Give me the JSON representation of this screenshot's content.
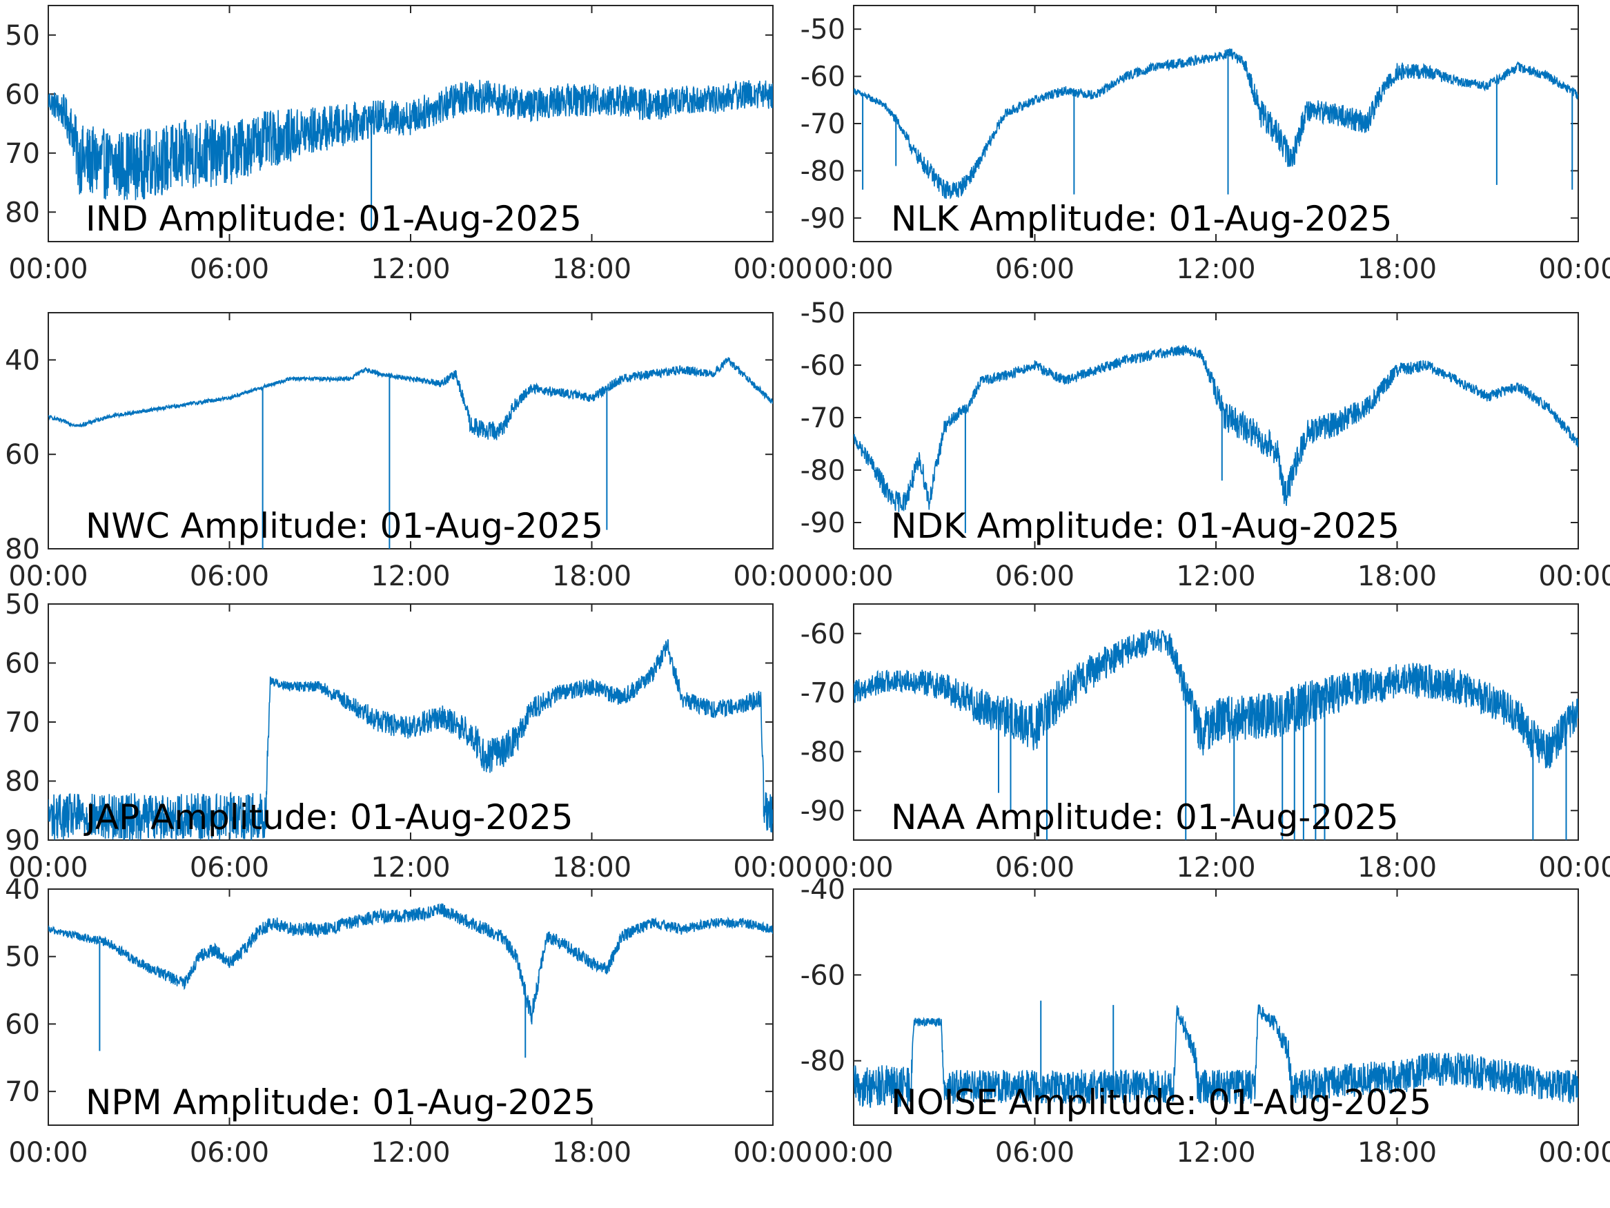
{
  "line_color": "#0072BD",
  "chart_data": [
    {
      "type": "line",
      "title": "IND Amplitude: 01-Aug-2025",
      "xlabel": "",
      "ylabel": "",
      "x_ticks": [
        "00:00",
        "06:00",
        "12:00",
        "18:00",
        "00:00"
      ],
      "y_ticks": [
        "50",
        "60",
        "70",
        "80"
      ],
      "ylim": [
        -85,
        -45
      ],
      "y_reversed_display": true,
      "series": [
        {
          "hours": [
            0,
            0.5,
            0.8,
            1,
            2,
            3,
            4,
            5,
            6,
            7,
            8,
            9,
            10,
            11,
            12,
            13,
            14,
            15,
            16,
            17,
            18,
            19,
            20,
            21,
            22,
            23,
            24
          ],
          "center": [
            -61,
            -63,
            -66,
            -71,
            -72,
            -72,
            -71,
            -70,
            -70,
            -68,
            -67,
            -66,
            -65,
            -64,
            -64,
            -62,
            -60,
            -61,
            -62,
            -61,
            -61,
            -61,
            -62,
            -61,
            -61,
            -60,
            -60
          ],
          "noise": [
            2,
            3,
            4,
            6,
            6,
            6,
            6,
            6,
            5.5,
            5,
            4.5,
            4,
            3.5,
            3,
            3,
            3,
            3,
            2.8,
            2.8,
            2.8,
            2.8,
            2.8,
            2.8,
            2.5,
            2.5,
            2.5,
            2.5
          ]
        }
      ],
      "spikes": [
        {
          "hour": 10.7,
          "value": -83
        }
      ]
    },
    {
      "type": "line",
      "title": "NLK Amplitude: 01-Aug-2025",
      "xlabel": "",
      "ylabel": "",
      "x_ticks": [
        "00:00",
        "06:00",
        "12:00",
        "18:00",
        "00:00"
      ],
      "y_ticks": [
        "-50",
        "-60",
        "-70",
        "-80",
        "-90"
      ],
      "ylim": [
        -95,
        -45
      ],
      "y_reversed_display": false,
      "series": [
        {
          "hours": [
            0,
            1,
            1.5,
            2,
            2.5,
            3,
            3.5,
            4,
            5,
            6,
            7,
            8,
            9,
            10,
            11,
            12,
            12.5,
            13,
            13.5,
            14,
            14.5,
            15,
            16,
            17,
            17.5,
            18,
            19,
            20,
            21,
            22,
            23,
            24
          ],
          "center": [
            -63,
            -66,
            -70,
            -76,
            -80,
            -84,
            -84,
            -80,
            -68,
            -65,
            -63,
            -64,
            -60,
            -58,
            -57,
            -56,
            -55,
            -58,
            -68,
            -72,
            -78,
            -67,
            -68,
            -70,
            -63,
            -59,
            -59,
            -61,
            -62,
            -58,
            -60,
            -64
          ],
          "noise": [
            0.6,
            0.8,
            1,
            1.5,
            2,
            2,
            2,
            1.5,
            1,
            1,
            1,
            1,
            1,
            1,
            1,
            1,
            1,
            1.5,
            3,
            3,
            3,
            2.5,
            2.5,
            2.5,
            2,
            2,
            1.5,
            1,
            1,
            1,
            1,
            1
          ]
        }
      ],
      "spikes": [
        {
          "hour": 0.3,
          "value": -84
        },
        {
          "hour": 1.4,
          "value": -79
        },
        {
          "hour": 7.3,
          "value": -85
        },
        {
          "hour": 12.4,
          "value": -85
        },
        {
          "hour": 21.3,
          "value": -83
        },
        {
          "hour": 23.8,
          "value": -84
        }
      ]
    },
    {
      "type": "line",
      "title": "NWC Amplitude: 01-Aug-2025",
      "xlabel": "",
      "ylabel": "",
      "x_ticks": [
        "00:00",
        "06:00",
        "12:00",
        "18:00",
        "00:00"
      ],
      "y_ticks": [
        "40",
        "60",
        "80"
      ],
      "ylim": [
        -80,
        -30
      ],
      "y_reversed_display": true,
      "series": [
        {
          "hours": [
            0,
            1,
            2,
            3,
            4,
            5,
            6,
            7,
            8,
            9,
            10,
            10.5,
            11,
            12,
            13,
            13.5,
            14,
            14.5,
            15,
            15.5,
            16,
            17,
            18,
            19,
            20,
            21,
            22,
            22.5,
            23,
            24
          ],
          "center": [
            -52,
            -54,
            -52,
            -51,
            -50,
            -49,
            -48,
            -46,
            -44,
            -44,
            -44,
            -42,
            -43,
            -44,
            -45,
            -43,
            -54,
            -55,
            -55,
            -49,
            -46,
            -47,
            -48,
            -44,
            -43,
            -42,
            -43,
            -40,
            -43,
            -49
          ],
          "noise": [
            0.4,
            0.4,
            0.4,
            0.4,
            0.4,
            0.4,
            0.4,
            0.4,
            0.4,
            0.4,
            0.5,
            0.5,
            0.5,
            0.5,
            0.8,
            1,
            2,
            2,
            2,
            1.5,
            1,
            1,
            1,
            1,
            1,
            1,
            0.8,
            0.8,
            0.8,
            0.6
          ]
        }
      ],
      "spikes": [
        {
          "hour": 7.1,
          "value": -80
        },
        {
          "hour": 11.3,
          "value": -80
        },
        {
          "hour": 18.5,
          "value": -76
        }
      ]
    },
    {
      "type": "line",
      "title": "NDK Amplitude: 01-Aug-2025",
      "xlabel": "",
      "ylabel": "",
      "x_ticks": [
        "00:00",
        "06:00",
        "12:00",
        "18:00",
        "00:00"
      ],
      "y_ticks": [
        "-50",
        "-60",
        "-70",
        "-80",
        "-90"
      ],
      "ylim": [
        -95,
        -50
      ],
      "y_reversed_display": false,
      "series": [
        {
          "hours": [
            0,
            0.5,
            1,
            1.3,
            1.7,
            2,
            2.2,
            2.5,
            3,
            3.5,
            3.8,
            4.2,
            5,
            6,
            7,
            8,
            9,
            10,
            11,
            11.5,
            12,
            12.3,
            13,
            14,
            14.3,
            15,
            16,
            17,
            18,
            19,
            20,
            21,
            22,
            23,
            24
          ],
          "center": [
            -74,
            -78,
            -83,
            -86,
            -86,
            -81,
            -78,
            -86,
            -72,
            -69,
            -68,
            -63,
            -62,
            -60,
            -63,
            -61,
            -59,
            -58,
            -57,
            -58,
            -65,
            -70,
            -72,
            -76,
            -85,
            -73,
            -71,
            -68,
            -61,
            -60,
            -63,
            -66,
            -64,
            -68,
            -75
          ],
          "noise": [
            1,
            1.5,
            2,
            2,
            2,
            2,
            2,
            2,
            1.5,
            1,
            1,
            1,
            1,
            1,
            1,
            1,
            1,
            1,
            1,
            1,
            2,
            3,
            3,
            3,
            3,
            2.5,
            2.5,
            2,
            1.5,
            1,
            1,
            1,
            1,
            1,
            1
          ]
        }
      ],
      "spikes": [
        {
          "hour": 3.7,
          "value": -92
        },
        {
          "hour": 12.2,
          "value": -82
        }
      ]
    },
    {
      "type": "line",
      "title": "JAP Amplitude: 01-Aug-2025",
      "xlabel": "",
      "ylabel": "",
      "x_ticks": [
        "00:00",
        "06:00",
        "12:00",
        "18:00",
        "00:00"
      ],
      "y_ticks": [
        "50",
        "60",
        "70",
        "80",
        "90"
      ],
      "ylim": [
        -90,
        -50
      ],
      "y_reversed_display": true,
      "series": [
        {
          "hours": [
            0,
            1,
            2,
            3,
            4,
            5,
            6,
            7.2,
            7.35,
            8,
            9,
            10,
            11,
            12,
            13,
            14,
            14.5,
            15,
            15.5,
            16,
            17,
            18,
            19,
            20,
            20.5,
            21,
            22,
            23,
            23.6,
            23.7,
            24
          ],
          "center": [
            -86,
            -86,
            -86,
            -86,
            -86,
            -86,
            -86,
            -86,
            -63,
            -64,
            -64,
            -67,
            -70,
            -71,
            -69,
            -72,
            -76,
            -75,
            -73,
            -68,
            -65,
            -64,
            -66,
            -62,
            -57,
            -66,
            -68,
            -67,
            -66,
            -85,
            -86
          ],
          "noise": [
            4,
            4,
            4,
            4,
            4,
            4,
            4,
            4,
            0.8,
            0.8,
            1,
            1.5,
            2,
            2,
            2,
            2.5,
            3,
            3,
            2.5,
            2,
            1.5,
            1.5,
            1.5,
            1.5,
            1.5,
            1.5,
            1.5,
            1.5,
            1.5,
            4,
            4
          ]
        }
      ],
      "spikes": []
    },
    {
      "type": "line",
      "title": "NAA Amplitude: 01-Aug-2025",
      "xlabel": "",
      "ylabel": "",
      "x_ticks": [
        "00:00",
        "06:00",
        "12:00",
        "18:00",
        "00:00"
      ],
      "y_ticks": [
        "-60",
        "-70",
        "-80",
        "-90"
      ],
      "ylim": [
        -95,
        -55
      ],
      "y_reversed_display": false,
      "series": [
        {
          "hours": [
            0,
            1,
            2,
            3,
            4,
            5,
            5.5,
            6,
            7,
            8,
            9,
            10,
            10.5,
            11,
            11.5,
            12,
            13,
            14,
            15,
            16,
            17,
            18,
            19,
            20,
            21,
            22,
            22.5,
            23,
            24
          ],
          "center": [
            -70,
            -68,
            -68,
            -69,
            -72,
            -74,
            -75,
            -76,
            -70,
            -66,
            -63,
            -61,
            -62,
            -70,
            -77,
            -75,
            -74,
            -74,
            -72,
            -70,
            -69,
            -68,
            -68,
            -69,
            -71,
            -74,
            -78,
            -80,
            -73
          ],
          "noise": [
            2,
            2,
            2,
            2.5,
            3,
            3.5,
            4,
            4,
            3.5,
            3,
            2.5,
            2,
            2,
            3,
            4,
            4,
            4,
            4,
            4,
            3.5,
            3,
            3,
            3,
            3,
            3,
            3,
            3.5,
            3.5,
            3
          ]
        }
      ],
      "spikes": [
        {
          "hour": 4.8,
          "value": -87
        },
        {
          "hour": 5.2,
          "value": -90
        },
        {
          "hour": 6.4,
          "value": -95
        },
        {
          "hour": 11.0,
          "value": -95
        },
        {
          "hour": 12.6,
          "value": -91
        },
        {
          "hour": 14.2,
          "value": -95
        },
        {
          "hour": 14.6,
          "value": -95
        },
        {
          "hour": 14.9,
          "value": -95
        },
        {
          "hour": 15.3,
          "value": -95
        },
        {
          "hour": 15.6,
          "value": -95
        },
        {
          "hour": 22.5,
          "value": -95
        },
        {
          "hour": 23.6,
          "value": -95
        }
      ]
    },
    {
      "type": "line",
      "title": "NPM Amplitude: 01-Aug-2025",
      "xlabel": "",
      "ylabel": "",
      "x_ticks": [
        "00:00",
        "06:00",
        "12:00",
        "18:00",
        "00:00"
      ],
      "y_ticks": [
        "40",
        "50",
        "60",
        "70"
      ],
      "ylim": [
        -75,
        -40
      ],
      "y_reversed_display": true,
      "series": [
        {
          "hours": [
            0,
            1,
            2,
            3,
            4,
            4.5,
            5,
            5.5,
            6,
            6.5,
            7,
            7.5,
            8,
            9,
            10,
            11,
            12,
            13,
            14,
            15,
            15.5,
            16,
            16.5,
            17,
            18,
            18.5,
            19,
            20,
            21,
            22,
            23,
            24
          ],
          "center": [
            -46,
            -47,
            -48,
            -51,
            -53,
            -54,
            -50,
            -49,
            -51,
            -49,
            -46,
            -45,
            -46,
            -46,
            -45,
            -44,
            -44,
            -43,
            -45,
            -47,
            -50,
            -59,
            -47,
            -48,
            -51,
            -52,
            -47,
            -45,
            -46,
            -45,
            -45,
            -46
          ],
          "noise": [
            0.5,
            0.6,
            0.7,
            0.8,
            0.9,
            0.9,
            1,
            1,
            1,
            1,
            1,
            1,
            1,
            1,
            1,
            1,
            1,
            1,
            1,
            1,
            1,
            1.5,
            1,
            1,
            1,
            1,
            1,
            0.8,
            0.8,
            0.7,
            0.7,
            0.7
          ]
        }
      ],
      "spikes": [
        {
          "hour": 1.7,
          "value": -64
        },
        {
          "hour": 15.8,
          "value": -65
        }
      ]
    },
    {
      "type": "line",
      "title": "NOISE Amplitude: 01-Aug-2025",
      "xlabel": "",
      "ylabel": "",
      "x_ticks": [
        "00:00",
        "06:00",
        "12:00",
        "18:00",
        "00:00"
      ],
      "y_ticks": [
        "-40",
        "-60",
        "-80"
      ],
      "ylim": [
        -95,
        -40
      ],
      "y_reversed_display": false,
      "series": [
        {
          "hours": [
            0,
            1,
            1.9,
            2.0,
            2.9,
            3.0,
            4,
            5,
            6,
            7,
            8,
            9,
            10,
            10.6,
            10.7,
            11.3,
            11.4,
            12,
            13,
            13.3,
            13.4,
            14,
            14.4,
            14.5,
            15,
            16,
            17,
            18,
            19,
            20,
            21,
            22,
            23,
            24
          ],
          "center": [
            -86,
            -86,
            -86,
            -71,
            -71,
            -86,
            -86,
            -86,
            -86,
            -86,
            -86,
            -86,
            -86,
            -86,
            -68,
            -78,
            -86,
            -86,
            -86,
            -86,
            -68,
            -72,
            -78,
            -86,
            -86,
            -85,
            -84,
            -84,
            -82,
            -82,
            -83,
            -84,
            -86,
            -86
          ],
          "noise": [
            5,
            5,
            5,
            1,
            1,
            4,
            4,
            4,
            4,
            4,
            4,
            4,
            4,
            4,
            1.5,
            3,
            4,
            4,
            4,
            4,
            1.5,
            2,
            3,
            4,
            4,
            4,
            4,
            4,
            4,
            4,
            4,
            4,
            4,
            4
          ]
        }
      ],
      "spikes": [
        {
          "hour": 6.2,
          "value": -66
        },
        {
          "hour": 8.6,
          "value": -67
        }
      ]
    }
  ]
}
